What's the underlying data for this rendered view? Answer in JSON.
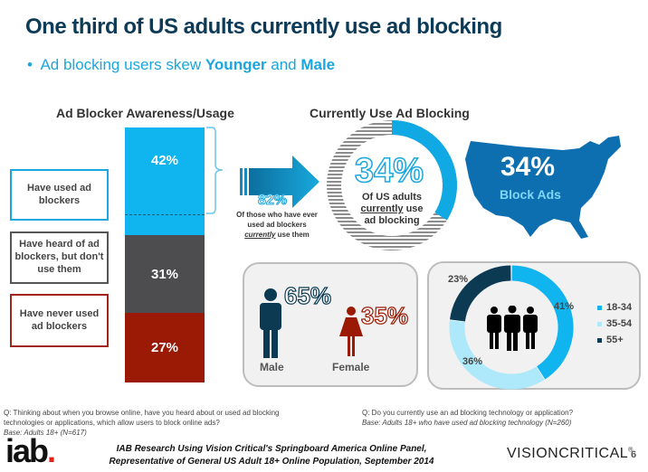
{
  "title": "One third of US adults currently use ad blocking",
  "subtitle": {
    "bullet": "•",
    "prefix": "Ad blocking users skew ",
    "w1": "Younger",
    "mid": " and ",
    "w2": "Male"
  },
  "left": {
    "header": "Ad Blocker Awareness/Usage",
    "labels": [
      "Have used ad blockers",
      "Have heard of ad blockers, but don't use them",
      "Have never used ad blockers"
    ]
  },
  "middle": {
    "header": "Currently Use Ad Blocking",
    "pct82": "82%",
    "note_a": "Of those who have ever used ad blockers",
    "note_em": "currently",
    "note_b": " use them",
    "donut_pct": "34%",
    "donut_l1": "Of US adults",
    "donut_em": "currently",
    "donut_l2": " use",
    "donut_l3": "ad blocking"
  },
  "map": {
    "pct": "34%",
    "label": "Block Ads"
  },
  "gender": {
    "male_pct": "65%",
    "female_pct": "35%",
    "male": "Male",
    "female": "Female"
  },
  "footer": {
    "q1": "Q: Thinking about when you browse online, have you heard about or used ad blocking technologies or applications, which allow users to block online ads?",
    "base1": "Base: Adults 18+ (N=617)",
    "q2": "Q: Do you currently use an ad blocking technology or application?",
    "base2": "Base: Adults 18+ who have used ad blocking technology (N=260)",
    "source1": "IAB Research Using Vision Critical's Springboard America Online Panel,",
    "source2": "Representative of General US Adult 18+ Online Population, September 2014",
    "iab_logo": "iab.",
    "vc_logo": "VISIONCRITICAL",
    "page": "6"
  },
  "colors": {
    "blue": "#10b4ee",
    "gray": "#4d4d4f",
    "red": "#9a1a05",
    "navy": "#0b3a52",
    "light": "#aee8fb"
  },
  "chart_data": [
    {
      "type": "bar",
      "title": "Ad Blocker Awareness/Usage",
      "stacked": true,
      "categories": [
        "Have used ad blockers",
        "Have heard of ad blockers, but don't use them",
        "Have never used ad blockers"
      ],
      "values": [
        42,
        31,
        27
      ],
      "labels": [
        "42%",
        "31%",
        "27%"
      ]
    },
    {
      "type": "pie",
      "title": "Currently Use Ad Blocking",
      "categories": [
        "Currently use"
      ],
      "values": [
        34
      ]
    },
    {
      "type": "bar",
      "categories": [
        "Male",
        "Female"
      ],
      "values": [
        65,
        35
      ],
      "labels": [
        "65%",
        "35%"
      ]
    },
    {
      "type": "pie",
      "categories": [
        "18-34",
        "35-54",
        "55+"
      ],
      "values": [
        41,
        36,
        23
      ],
      "labels": [
        "41%",
        "36%",
        "23%"
      ],
      "legend": "right"
    }
  ]
}
